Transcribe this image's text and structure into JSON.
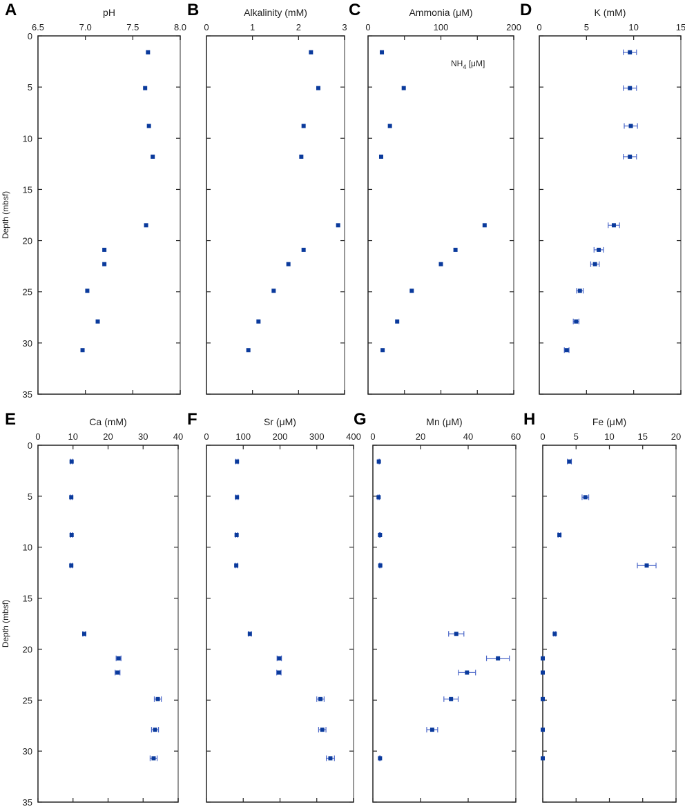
{
  "figure": {
    "ylabel": "Depth (mbsf)"
  },
  "chart_data": [
    {
      "panel": "A",
      "type": "scatter",
      "title": "pH",
      "xlabel": "pH",
      "ylabel": "Depth (mbsf)",
      "xlim": [
        6.5,
        8.0
      ],
      "xticks": [
        "6.5",
        "7.0",
        "7.5",
        "8.0"
      ],
      "xtick_values": [
        6.5,
        7.0,
        7.5,
        8.0
      ],
      "ylim": [
        0,
        35
      ],
      "yticks": [
        "0",
        "5",
        "10",
        "15",
        "20",
        "25",
        "30",
        "35"
      ],
      "depth": [
        1.6,
        5.1,
        8.8,
        11.8,
        18.5,
        20.9,
        22.3,
        24.9,
        27.9,
        30.7
      ],
      "values": [
        7.66,
        7.63,
        7.67,
        7.71,
        7.64,
        7.2,
        7.2,
        7.02,
        7.13,
        6.97
      ],
      "errors": null
    },
    {
      "panel": "B",
      "type": "scatter",
      "title": "Alkalinity (mM)",
      "xlabel": "Alkalinity (mM)",
      "ylabel": "",
      "xlim": [
        0,
        3
      ],
      "xticks": [
        "0",
        "1",
        "2",
        "3"
      ],
      "xtick_values": [
        0,
        1,
        2,
        3
      ],
      "ylim": [
        0,
        35
      ],
      "yticks": [],
      "depth": [
        1.6,
        5.1,
        8.8,
        11.8,
        18.5,
        20.9,
        22.3,
        24.9,
        27.9,
        30.7
      ],
      "values": [
        2.27,
        2.43,
        2.11,
        2.06,
        2.86,
        2.11,
        1.78,
        1.46,
        1.13,
        0.91
      ],
      "errors": null
    },
    {
      "panel": "C",
      "type": "scatter",
      "title": "Ammonia (μM)",
      "xlabel": "Ammonia (μM)",
      "ylabel": "",
      "xlim": [
        0,
        200
      ],
      "xticks": [
        "0",
        "100",
        "200"
      ],
      "xtick_values": [
        0,
        100,
        200
      ],
      "minor_ticks": [
        50,
        150
      ],
      "ylim": [
        0,
        35
      ],
      "yticks": [],
      "annotation": "NH4 [μM]",
      "depth": [
        1.6,
        5.1,
        8.8,
        11.8,
        18.5,
        20.9,
        22.3,
        24.9,
        27.9,
        30.7
      ],
      "values": [
        19,
        49,
        30,
        18,
        160,
        120,
        100,
        60,
        40,
        20
      ],
      "errors": null
    },
    {
      "panel": "D",
      "type": "scatter",
      "title": "K (mM)",
      "xlabel": "K (mM)",
      "ylabel": "",
      "xlim": [
        0,
        15
      ],
      "xticks": [
        "0",
        "5",
        "10",
        "15"
      ],
      "xtick_values": [
        0,
        5,
        10,
        15
      ],
      "ylim": [
        0,
        35
      ],
      "yticks": [],
      "depth": [
        1.6,
        5.1,
        8.8,
        11.8,
        18.5,
        20.9,
        22.3,
        24.9,
        27.9,
        30.7
      ],
      "values": [
        9.6,
        9.6,
        9.7,
        9.6,
        7.9,
        6.3,
        5.9,
        4.3,
        3.9,
        2.9
      ],
      "errors": [
        0.7,
        0.7,
        0.7,
        0.7,
        0.6,
        0.5,
        0.45,
        0.35,
        0.3,
        0.25
      ]
    },
    {
      "panel": "E",
      "type": "scatter",
      "title": "Ca (mM)",
      "xlabel": "Ca (mM)",
      "ylabel": "Depth (mbsf)",
      "xlim": [
        0,
        40
      ],
      "xticks": [
        "0",
        "10",
        "20",
        "30",
        "40"
      ],
      "xtick_values": [
        0,
        10,
        20,
        30,
        40
      ],
      "ylim": [
        0,
        35
      ],
      "yticks": [
        "0",
        "5",
        "10",
        "15",
        "20",
        "25",
        "30",
        "35"
      ],
      "depth": [
        1.6,
        5.1,
        8.8,
        11.8,
        18.5,
        20.9,
        22.3,
        24.9,
        27.9,
        30.7
      ],
      "values": [
        9.6,
        9.5,
        9.6,
        9.5,
        13.2,
        23.0,
        22.7,
        34.2,
        33.4,
        33.0
      ],
      "errors": [
        0.3,
        0.3,
        0.3,
        0.3,
        0.4,
        0.7,
        0.7,
        1.0,
        1.0,
        1.0
      ]
    },
    {
      "panel": "F",
      "type": "scatter",
      "title": "Sr (μM)",
      "xlabel": "Sr (μM)",
      "ylabel": "",
      "xlim": [
        0,
        400
      ],
      "xticks": [
        "0",
        "100",
        "200",
        "300",
        "400"
      ],
      "xtick_values": [
        0,
        100,
        200,
        300,
        400
      ],
      "ylim": [
        0,
        35
      ],
      "yticks": [],
      "depth": [
        1.6,
        5.1,
        8.8,
        11.8,
        18.5,
        20.9,
        22.3,
        24.9,
        27.9,
        30.7
      ],
      "values": [
        83,
        83,
        82,
        81,
        118,
        198,
        197,
        310,
        315,
        337
      ],
      "errors": [
        3,
        3,
        3,
        3,
        4,
        6,
        6,
        10,
        10,
        11
      ]
    },
    {
      "panel": "G",
      "type": "scatter",
      "title": "Mn (μM)",
      "xlabel": "Mn (μM)",
      "ylabel": "",
      "xlim": [
        0,
        60
      ],
      "xticks": [
        "0",
        "20",
        "40",
        "60"
      ],
      "xtick_values": [
        0,
        20,
        40,
        60
      ],
      "ylim": [
        0,
        35
      ],
      "yticks": [],
      "depth": [
        1.6,
        5.1,
        8.8,
        11.8,
        18.5,
        20.9,
        22.3,
        24.9,
        27.9,
        30.7
      ],
      "values": [
        2.5,
        2.4,
        3.0,
        3.1,
        35.0,
        52.5,
        39.5,
        32.8,
        24.9,
        3.0
      ],
      "errors": [
        0.3,
        0.3,
        0.3,
        0.3,
        3.2,
        4.8,
        3.6,
        3.0,
        2.3,
        0.3
      ]
    },
    {
      "panel": "H",
      "type": "scatter",
      "title": "Fe (μM)",
      "xlabel": "Fe (μM)",
      "ylabel": "",
      "xlim": [
        0,
        20
      ],
      "xticks": [
        "0",
        "5",
        "10",
        "15",
        "20"
      ],
      "xtick_values": [
        0,
        5,
        10,
        15,
        20
      ],
      "ylim": [
        0,
        35
      ],
      "yticks": [],
      "depth": [
        1.6,
        5.1,
        8.8,
        11.8,
        18.5,
        20.9,
        22.3,
        24.9,
        27.9,
        30.7
      ],
      "values": [
        4.0,
        6.4,
        2.5,
        15.6,
        1.8,
        0.0,
        0.0,
        0.0,
        0.0,
        0.0
      ],
      "errors": [
        0.3,
        0.5,
        0.2,
        1.4,
        0.15,
        0,
        0,
        0,
        0,
        0
      ]
    }
  ],
  "colors": {
    "marker": "#0a3a9c",
    "errorbar": "#4a66c8",
    "axis": "#222222",
    "axis_light": "#999999"
  }
}
